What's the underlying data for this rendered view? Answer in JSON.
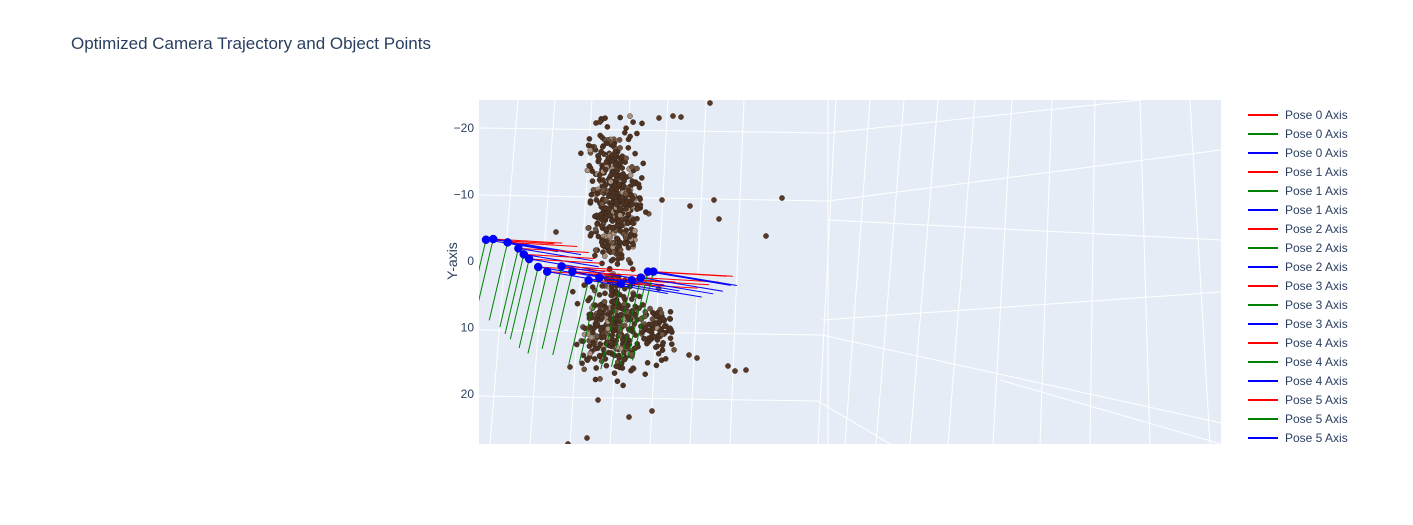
{
  "chart_data": {
    "type": "scatter3d",
    "title": "Optimized Camera Trajectory and Object Points",
    "ylabel": "Y-axis",
    "y_ticks": [
      -20,
      -10,
      0,
      10,
      20
    ],
    "y_tick_labels": [
      "−20",
      "−10",
      "0",
      "10",
      "20"
    ],
    "legend": [
      {
        "name": "Pose 0 Axis",
        "color": "#ff0000"
      },
      {
        "name": "Pose 0 Axis",
        "color": "#008000"
      },
      {
        "name": "Pose 0 Axis",
        "color": "#0000ff"
      },
      {
        "name": "Pose 1 Axis",
        "color": "#ff0000"
      },
      {
        "name": "Pose 1 Axis",
        "color": "#008000"
      },
      {
        "name": "Pose 1 Axis",
        "color": "#0000ff"
      },
      {
        "name": "Pose 2 Axis",
        "color": "#ff0000"
      },
      {
        "name": "Pose 2 Axis",
        "color": "#008000"
      },
      {
        "name": "Pose 2 Axis",
        "color": "#0000ff"
      },
      {
        "name": "Pose 3 Axis",
        "color": "#ff0000"
      },
      {
        "name": "Pose 3 Axis",
        "color": "#008000"
      },
      {
        "name": "Pose 3 Axis",
        "color": "#0000ff"
      },
      {
        "name": "Pose 4 Axis",
        "color": "#ff0000"
      },
      {
        "name": "Pose 4 Axis",
        "color": "#008000"
      },
      {
        "name": "Pose 4 Axis",
        "color": "#0000ff"
      },
      {
        "name": "Pose 5 Axis",
        "color": "#ff0000"
      },
      {
        "name": "Pose 5 Axis",
        "color": "#008000"
      },
      {
        "name": "Pose 5 Axis",
        "color": "#0000ff"
      }
    ],
    "camera_positions": [
      {
        "x": -9.0,
        "y": -3.2
      },
      {
        "x": -8.6,
        "y": -3.3
      },
      {
        "x": -7.8,
        "y": -2.8
      },
      {
        "x": -7.2,
        "y": -1.9
      },
      {
        "x": -6.9,
        "y": -1.0
      },
      {
        "x": -6.6,
        "y": -0.3
      },
      {
        "x": -6.1,
        "y": 0.9
      },
      {
        "x": -5.6,
        "y": 1.6
      },
      {
        "x": -4.8,
        "y": 0.8
      },
      {
        "x": -4.2,
        "y": 1.6
      },
      {
        "x": -3.3,
        "y": 2.9
      },
      {
        "x": -2.7,
        "y": 2.5
      },
      {
        "x": -1.5,
        "y": 3.4
      },
      {
        "x": -0.9,
        "y": 2.9
      },
      {
        "x": -0.4,
        "y": 2.5
      },
      {
        "x": 0.0,
        "y": 1.6
      },
      {
        "x": 0.3,
        "y": 1.6
      }
    ],
    "pose_axis_vectors": {
      "x_axis": {
        "dx": 3.8,
        "dy": 0.6
      },
      "y_axis": {
        "dx": -1.0,
        "dy": 11.5
      },
      "z_axis": {
        "dx": 4.0,
        "dy": 1.8
      }
    },
    "point_cloud_color": "#5a3a26",
    "background_color": "#e5ecf6"
  }
}
